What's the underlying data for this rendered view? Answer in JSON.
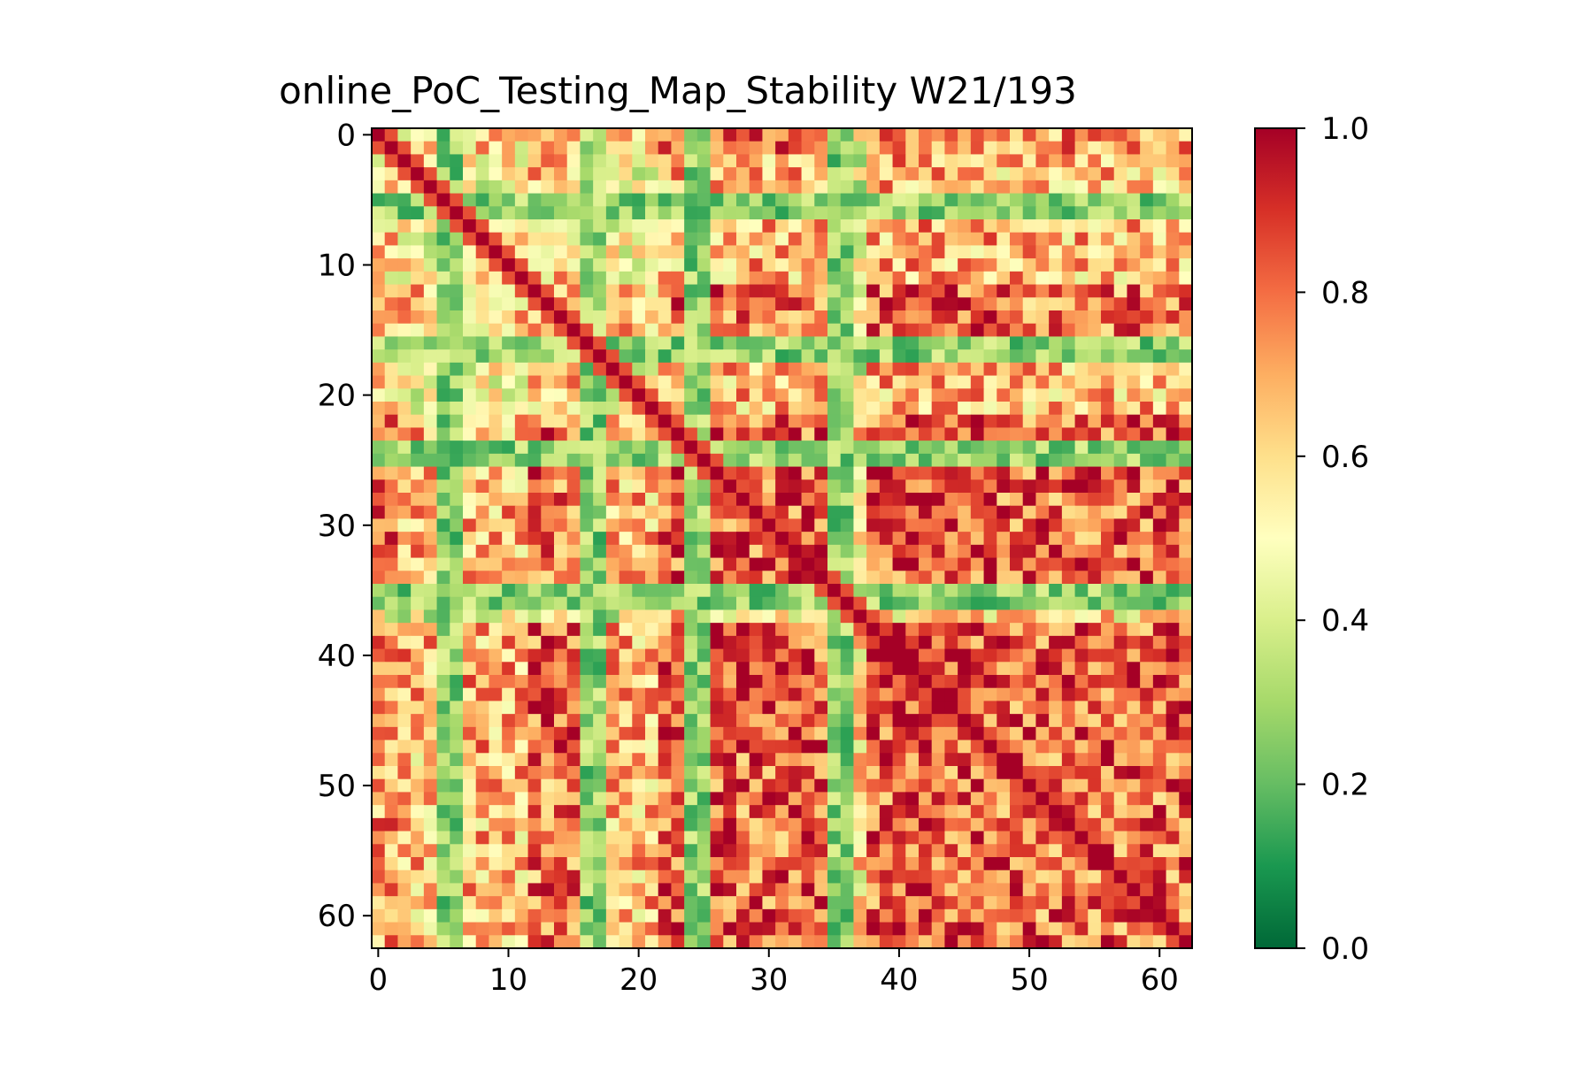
{
  "chart_data": {
    "type": "heatmap",
    "title": "online_PoC_Testing_Map_Stability W21/193",
    "n": 63,
    "x_ticks": [
      0,
      10,
      20,
      30,
      40,
      50,
      60
    ],
    "y_ticks": [
      0,
      10,
      20,
      30,
      40,
      50,
      60
    ],
    "colormap": "RdYlGn_r",
    "colorbar": {
      "min": 0.0,
      "max": 1.0,
      "ticks": [
        "0.0",
        "0.2",
        "0.4",
        "0.6",
        "0.8",
        "1.0"
      ]
    },
    "colors": {
      "low": "#006837",
      "mid": "#ffffbf",
      "high": "#a50026"
    },
    "diagonal_value": 1.0,
    "block_structure": [
      {
        "range": [
          0,
          1
        ],
        "level": 0.7
      },
      {
        "range": [
          2,
          11
        ],
        "level": 0.5
      },
      {
        "range": [
          12,
          15
        ],
        "level": 0.75
      },
      {
        "range": [
          16,
          21
        ],
        "level": 0.5
      },
      {
        "range": [
          22,
          34
        ],
        "level": 0.82
      },
      {
        "range": [
          35,
          37
        ],
        "level": 0.35
      },
      {
        "range": [
          38,
          47
        ],
        "level": 0.85
      },
      {
        "range": [
          48,
          62
        ],
        "level": 0.8
      }
    ],
    "low_rows": [
      5,
      6,
      16,
      17,
      24,
      25,
      35,
      36
    ],
    "low_row_level": 0.12,
    "heatmap_estimated": true
  }
}
